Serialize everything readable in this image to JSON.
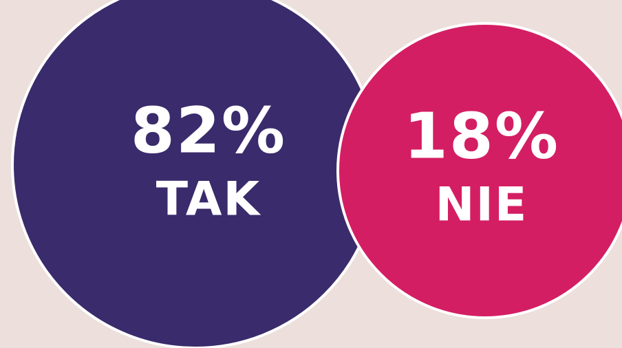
{
  "chart_data": {
    "type": "circles",
    "categories": [
      "TAK",
      "NIE"
    ],
    "values": [
      82,
      18
    ],
    "value_labels": [
      "82%",
      "18%"
    ],
    "colors": [
      "#3a2b6c",
      "#d41e63"
    ]
  }
}
